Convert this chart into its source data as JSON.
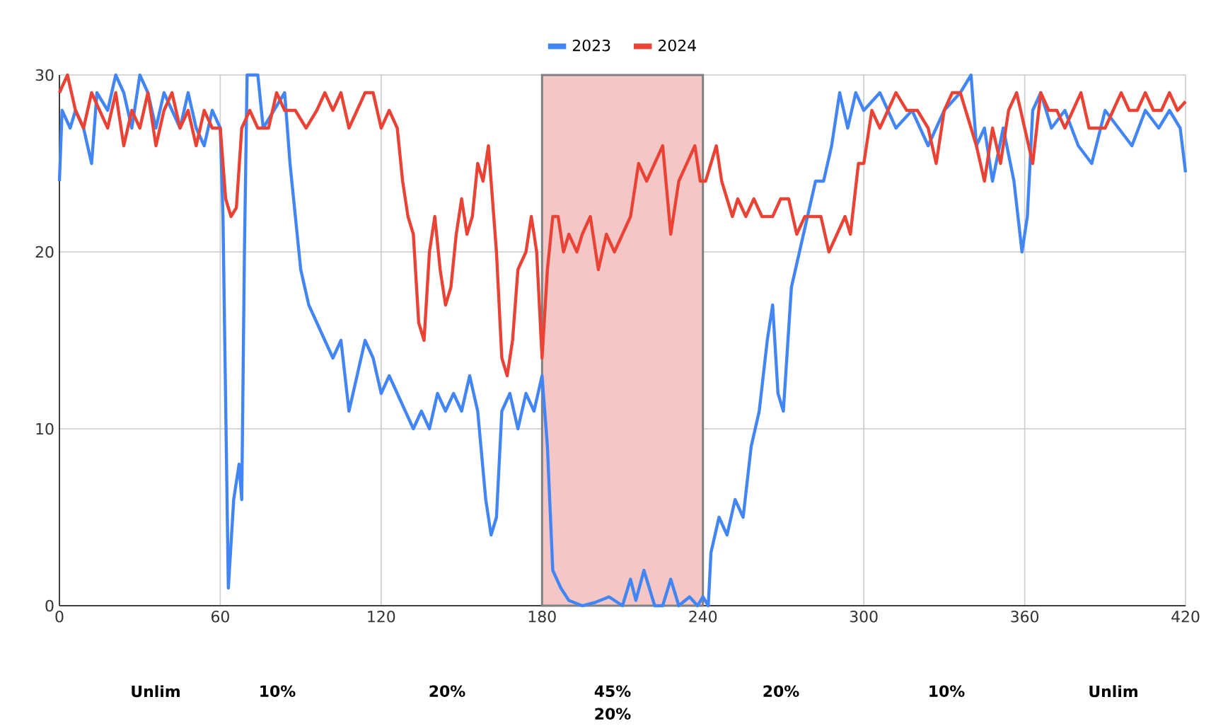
{
  "chart_data": {
    "type": "line",
    "legend": "top",
    "grid": true,
    "xlim": [
      0,
      420
    ],
    "ylim": [
      0,
      30
    ],
    "xticks": [
      0,
      60,
      120,
      180,
      240,
      300,
      360,
      420
    ],
    "yticks": [
      0,
      10,
      20,
      30
    ],
    "bands": [
      {
        "axis": "x",
        "from": 180,
        "to": 240,
        "color": "#f4c7c6"
      }
    ],
    "annotations": [
      "Unlim",
      "10%",
      "20%",
      "45%",
      "20%",
      "20%",
      "10%",
      "Unlim"
    ],
    "series": [
      {
        "name": "2023",
        "color": "#4285f4",
        "x": [
          0,
          1,
          4,
          6,
          9,
          12,
          14,
          18,
          21,
          24,
          27,
          30,
          33,
          36,
          39,
          42,
          45,
          48,
          51,
          54,
          57,
          60,
          61,
          63,
          65,
          67,
          68,
          69,
          70,
          74,
          76,
          80,
          84,
          86,
          90,
          93,
          96,
          99,
          102,
          105,
          108,
          111,
          114,
          117,
          120,
          123,
          126,
          129,
          132,
          135,
          138,
          141,
          144,
          147,
          150,
          153,
          156,
          159,
          161,
          163,
          165,
          168,
          171,
          174,
          177,
          180,
          182,
          184,
          187,
          190,
          195,
          200,
          205,
          210,
          213,
          215,
          218,
          222,
          225,
          228,
          231,
          235,
          238,
          240,
          242,
          243,
          246,
          249,
          252,
          255,
          258,
          261,
          264,
          266,
          268,
          270,
          273,
          276,
          279,
          282,
          285,
          288,
          291,
          294,
          297,
          300,
          306,
          312,
          318,
          324,
          330,
          336,
          340,
          342,
          345,
          348,
          352,
          356,
          359,
          361,
          363,
          366,
          370,
          375,
          380,
          385,
          390,
          395,
          400,
          405,
          410,
          414,
          418,
          420
        ],
        "values": [
          24,
          28,
          27,
          28,
          27,
          25,
          29,
          28,
          30,
          29,
          27,
          30,
          29,
          27,
          29,
          28,
          27,
          29,
          27,
          26,
          28,
          27,
          22,
          1,
          6,
          8,
          6,
          20,
          30,
          30,
          27,
          28,
          29,
          25,
          19,
          17,
          16,
          15,
          14,
          15,
          11,
          13,
          15,
          14,
          12,
          13,
          12,
          11,
          10,
          11,
          10,
          12,
          11,
          12,
          11,
          13,
          11,
          6,
          4,
          5,
          11,
          12,
          10,
          12,
          11,
          13,
          9,
          2,
          1,
          0.3,
          0,
          0.2,
          0.5,
          0,
          1.5,
          0.3,
          2,
          0,
          0,
          1.5,
          0,
          0.5,
          0,
          0.5,
          0,
          3,
          5,
          4,
          6,
          5,
          9,
          11,
          15,
          17,
          12,
          11,
          18,
          20,
          22,
          24,
          24,
          26,
          29,
          27,
          29,
          28,
          29,
          27,
          28,
          26,
          28,
          29,
          30,
          26,
          27,
          24,
          27,
          24,
          20,
          22,
          28,
          29,
          27,
          28,
          26,
          25,
          28,
          27,
          26,
          28,
          27,
          28,
          27,
          24.5
        ]
      },
      {
        "name": "2024",
        "color": "#ea4335",
        "x": [
          0,
          3,
          6,
          9,
          12,
          15,
          18,
          21,
          24,
          27,
          30,
          33,
          36,
          39,
          42,
          45,
          48,
          51,
          54,
          57,
          60,
          62,
          64,
          66,
          68,
          71,
          74,
          78,
          81,
          84,
          88,
          92,
          96,
          99,
          102,
          105,
          108,
          111,
          114,
          117,
          120,
          123,
          126,
          128,
          130,
          132,
          134,
          136,
          138,
          140,
          142,
          144,
          146,
          148,
          150,
          152,
          154,
          156,
          158,
          160,
          163,
          165,
          167,
          169,
          171,
          174,
          176,
          178,
          180,
          182,
          184,
          186,
          188,
          190,
          193,
          195,
          198,
          201,
          204,
          207,
          210,
          213,
          216,
          219,
          222,
          225,
          228,
          231,
          234,
          237,
          239,
          241,
          243,
          245,
          247,
          249,
          251,
          253,
          256,
          259,
          262,
          266,
          269,
          272,
          275,
          278,
          281,
          284,
          287,
          290,
          293,
          295,
          298,
          300,
          303,
          306,
          309,
          312,
          316,
          320,
          324,
          327,
          330,
          333,
          336,
          340,
          342,
          345,
          348,
          351,
          354,
          357,
          360,
          363,
          366,
          369,
          372,
          375,
          378,
          381,
          384,
          387,
          390,
          393,
          396,
          399,
          402,
          405,
          408,
          411,
          414,
          417,
          420
        ],
        "values": [
          29,
          30,
          28,
          27,
          29,
          28,
          27,
          29,
          26,
          28,
          27,
          29,
          26,
          28,
          29,
          27,
          28,
          26,
          28,
          27,
          27,
          23,
          22,
          22.5,
          27,
          28,
          27,
          27,
          29,
          28,
          28,
          27,
          28,
          29,
          28,
          29,
          27,
          28,
          29,
          29,
          27,
          28,
          27,
          24,
          22,
          21,
          16,
          15,
          20,
          22,
          19,
          17,
          18,
          21,
          23,
          21,
          22,
          25,
          24,
          26,
          20,
          14,
          13,
          15,
          19,
          20,
          22,
          20,
          14,
          19,
          22,
          22,
          20,
          21,
          20,
          21,
          22,
          19,
          21,
          20,
          21,
          22,
          25,
          24,
          25,
          26,
          21,
          24,
          25,
          26,
          24,
          24,
          25,
          26,
          24,
          23,
          22,
          23,
          22,
          23,
          22,
          22,
          23,
          23,
          21,
          22,
          22,
          22,
          20,
          21,
          22,
          21,
          25,
          25,
          28,
          27,
          28,
          29,
          28,
          28,
          27,
          25,
          28,
          29,
          29,
          27,
          26,
          24,
          27,
          25,
          28,
          29,
          27,
          25,
          29,
          28,
          28,
          27,
          28,
          29,
          27,
          27,
          27,
          28,
          29,
          28,
          28,
          29,
          28,
          28,
          29,
          28,
          28.5
        ]
      }
    ]
  }
}
